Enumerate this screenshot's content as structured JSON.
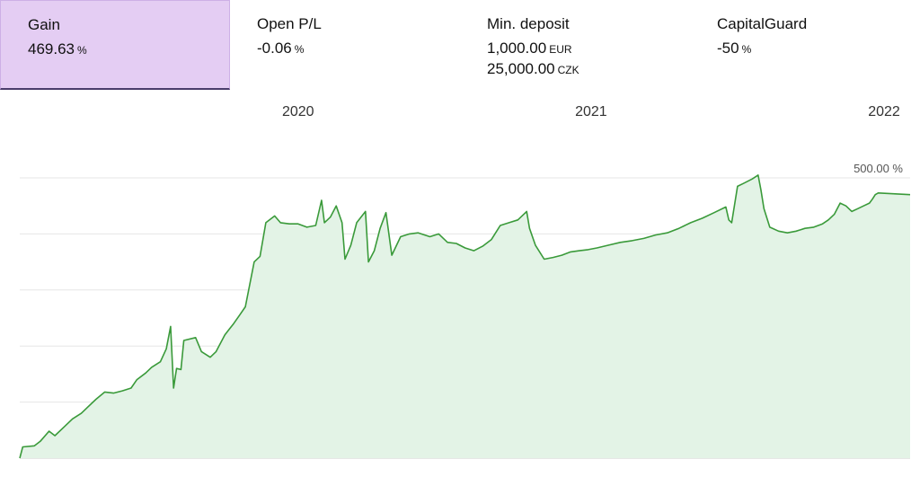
{
  "stats": [
    {
      "label": "Gain",
      "value": "469.63",
      "unit": "%",
      "active": true
    },
    {
      "label": "Open P/L",
      "value": "-0.06",
      "unit": "%"
    },
    {
      "label": "Min. deposit",
      "value": "1,000.00",
      "unit": "EUR",
      "value2": "25,000.00",
      "unit2": "CZK"
    },
    {
      "label": "CapitalGuard",
      "value": "-50",
      "unit": "%"
    }
  ],
  "colors": {
    "line": "#3a9a3a",
    "fill": "#e3f3e6",
    "grid": "#e6e6e6",
    "active_bg": "#e4cdf3"
  },
  "chart_data": {
    "type": "area",
    "year_labels": [
      {
        "label": "2020",
        "x": 2020.0
      },
      {
        "label": "2021",
        "x": 2021.0
      },
      {
        "label": "2022",
        "x": 2022.0
      }
    ],
    "y_ticks": [
      "0.00 %",
      "100.00 %",
      "200.00 %",
      "300.00 %",
      "400.00 %",
      "500.00 %"
    ],
    "ylim": [
      0,
      500
    ],
    "xlim": [
      2019.05,
      2022.0
    ],
    "grid": true,
    "series": [
      {
        "values": [
          [
            2019.05,
            0
          ],
          [
            2019.06,
            20
          ],
          [
            2019.1,
            22
          ],
          [
            2019.12,
            30
          ],
          [
            2019.15,
            48
          ],
          [
            2019.17,
            40
          ],
          [
            2019.2,
            55
          ],
          [
            2019.23,
            70
          ],
          [
            2019.26,
            80
          ],
          [
            2019.28,
            90
          ],
          [
            2019.31,
            105
          ],
          [
            2019.34,
            118
          ],
          [
            2019.37,
            116
          ],
          [
            2019.4,
            120
          ],
          [
            2019.43,
            125
          ],
          [
            2019.45,
            140
          ],
          [
            2019.48,
            152
          ],
          [
            2019.5,
            162
          ],
          [
            2019.53,
            172
          ],
          [
            2019.55,
            195
          ],
          [
            2019.565,
            235
          ],
          [
            2019.575,
            125
          ],
          [
            2019.585,
            160
          ],
          [
            2019.6,
            158
          ],
          [
            2019.61,
            210
          ],
          [
            2019.65,
            215
          ],
          [
            2019.67,
            190
          ],
          [
            2019.7,
            180
          ],
          [
            2019.72,
            190
          ],
          [
            2019.75,
            220
          ],
          [
            2019.78,
            240
          ],
          [
            2019.8,
            255
          ],
          [
            2019.82,
            270
          ],
          [
            2019.85,
            350
          ],
          [
            2019.87,
            360
          ],
          [
            2019.89,
            420
          ],
          [
            2019.92,
            432
          ],
          [
            2019.94,
            420
          ],
          [
            2019.97,
            418
          ],
          [
            2020.0,
            418
          ],
          [
            2020.03,
            412
          ],
          [
            2020.06,
            415
          ],
          [
            2020.08,
            460
          ],
          [
            2020.09,
            420
          ],
          [
            2020.11,
            430
          ],
          [
            2020.13,
            450
          ],
          [
            2020.15,
            420
          ],
          [
            2020.16,
            355
          ],
          [
            2020.18,
            380
          ],
          [
            2020.2,
            420
          ],
          [
            2020.23,
            440
          ],
          [
            2020.24,
            350
          ],
          [
            2020.26,
            370
          ],
          [
            2020.28,
            410
          ],
          [
            2020.3,
            438
          ],
          [
            2020.32,
            362
          ],
          [
            2020.35,
            395
          ],
          [
            2020.38,
            400
          ],
          [
            2020.41,
            402
          ],
          [
            2020.45,
            395
          ],
          [
            2020.48,
            400
          ],
          [
            2020.51,
            385
          ],
          [
            2020.54,
            383
          ],
          [
            2020.57,
            375
          ],
          [
            2020.6,
            370
          ],
          [
            2020.63,
            378
          ],
          [
            2020.66,
            390
          ],
          [
            2020.69,
            415
          ],
          [
            2020.72,
            420
          ],
          [
            2020.75,
            425
          ],
          [
            2020.78,
            440
          ],
          [
            2020.79,
            410
          ],
          [
            2020.81,
            380
          ],
          [
            2020.84,
            355
          ],
          [
            2020.87,
            358
          ],
          [
            2020.9,
            362
          ],
          [
            2020.93,
            368
          ],
          [
            2020.96,
            370
          ],
          [
            2020.99,
            372
          ],
          [
            2021.02,
            375
          ],
          [
            2021.06,
            380
          ],
          [
            2021.1,
            385
          ],
          [
            2021.14,
            388
          ],
          [
            2021.18,
            392
          ],
          [
            2021.22,
            398
          ],
          [
            2021.26,
            402
          ],
          [
            2021.3,
            410
          ],
          [
            2021.34,
            420
          ],
          [
            2021.38,
            428
          ],
          [
            2021.42,
            438
          ],
          [
            2021.46,
            448
          ],
          [
            2021.47,
            425
          ],
          [
            2021.48,
            420
          ],
          [
            2021.5,
            485
          ],
          [
            2021.52,
            490
          ],
          [
            2021.55,
            498
          ],
          [
            2021.57,
            505
          ],
          [
            2021.58,
            478
          ],
          [
            2021.59,
            445
          ],
          [
            2021.61,
            412
          ],
          [
            2021.64,
            405
          ],
          [
            2021.67,
            402
          ],
          [
            2021.7,
            405
          ],
          [
            2021.73,
            410
          ],
          [
            2021.76,
            412
          ],
          [
            2021.79,
            418
          ],
          [
            2021.81,
            425
          ],
          [
            2021.83,
            435
          ],
          [
            2021.85,
            455
          ],
          [
            2021.87,
            450
          ],
          [
            2021.89,
            440
          ],
          [
            2021.91,
            445
          ],
          [
            2021.93,
            450
          ],
          [
            2021.95,
            455
          ],
          [
            2021.96,
            462
          ],
          [
            2021.97,
            470
          ],
          [
            2021.98,
            473
          ],
          [
            2022.0,
            470
          ]
        ]
      }
    ]
  }
}
